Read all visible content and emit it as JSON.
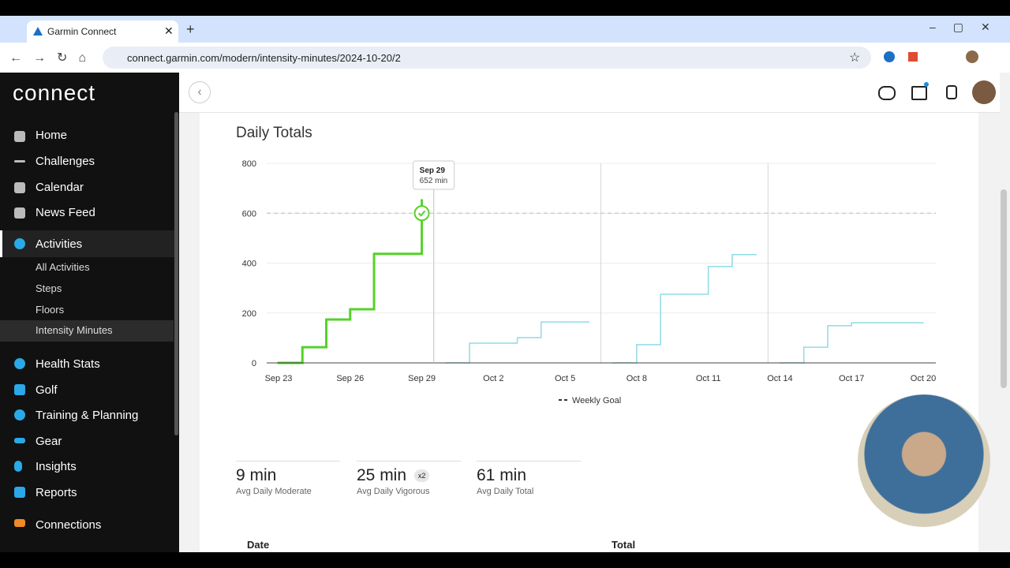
{
  "browser": {
    "tab_title": "Garmin Connect",
    "url": "connect.garmin.com/modern/intensity-minutes/2024-10-20/2"
  },
  "sidebar": {
    "logo": "connect",
    "items": [
      "Home",
      "Challenges",
      "Calendar",
      "News Feed",
      "Activities"
    ],
    "sub_items": [
      "All Activities",
      "Steps",
      "Floors",
      "Intensity Minutes"
    ],
    "more_items": [
      "Health Stats",
      "Golf",
      "Training & Planning",
      "Gear",
      "Insights",
      "Reports",
      "Connections"
    ]
  },
  "chart_data": {
    "type": "line",
    "title": "Daily Totals",
    "categories": [
      "Sep 23",
      null,
      null,
      "Sep 26",
      null,
      null,
      "Sep 29",
      null,
      null,
      "Oct 2",
      null,
      null,
      "Oct 5",
      null,
      null,
      "Oct 8",
      null,
      null,
      "Oct 11",
      null,
      null,
      "Oct 14",
      null,
      null,
      "Oct 17",
      null,
      null,
      "Oct 20"
    ],
    "series": [
      {
        "color": "#56d12b",
        "values": [
          0,
          63,
          174,
          215,
          437,
          437,
          652,
          null,
          null,
          null,
          null,
          null,
          null,
          null,
          null,
          null,
          null,
          null,
          null,
          null,
          null,
          null,
          null,
          null,
          null,
          null,
          null,
          null
        ]
      },
      {
        "color": "#8fdbe6",
        "values": [
          null,
          null,
          null,
          null,
          null,
          null,
          null,
          0,
          79,
          79,
          101,
          164,
          164,
          164,
          null,
          null,
          null,
          null,
          null,
          null,
          null,
          null,
          null,
          null,
          null,
          null,
          null,
          null
        ]
      },
      {
        "color": "#8fdbe6",
        "values": [
          null,
          null,
          null,
          null,
          null,
          null,
          null,
          null,
          null,
          null,
          null,
          null,
          null,
          null,
          0,
          73,
          275,
          275,
          386,
          434,
          434,
          null,
          null,
          null,
          null,
          null,
          null,
          null
        ]
      },
      {
        "color": "#8fdbe6",
        "values": [
          null,
          null,
          null,
          null,
          null,
          null,
          null,
          null,
          null,
          null,
          null,
          null,
          null,
          null,
          null,
          null,
          null,
          null,
          null,
          null,
          null,
          0,
          63,
          149,
          161,
          161,
          161,
          161
        ]
      }
    ],
    "ylim": [
      0,
      800
    ],
    "yticks": [
      0,
      200,
      400,
      600,
      800
    ],
    "grid": true,
    "goal": 600,
    "goal_label": "Weekly Goal",
    "tooltip": {
      "date": "Sep 29",
      "value": "652 min"
    }
  },
  "stats": [
    {
      "value": "9 min",
      "label": "Avg Daily Moderate"
    },
    {
      "value": "25 min",
      "badge": "x2",
      "label": "Avg Daily Vigorous"
    },
    {
      "value": "61 min",
      "label": "Avg Daily Total"
    }
  ],
  "table": {
    "headers": [
      "Date",
      "Total"
    ]
  }
}
